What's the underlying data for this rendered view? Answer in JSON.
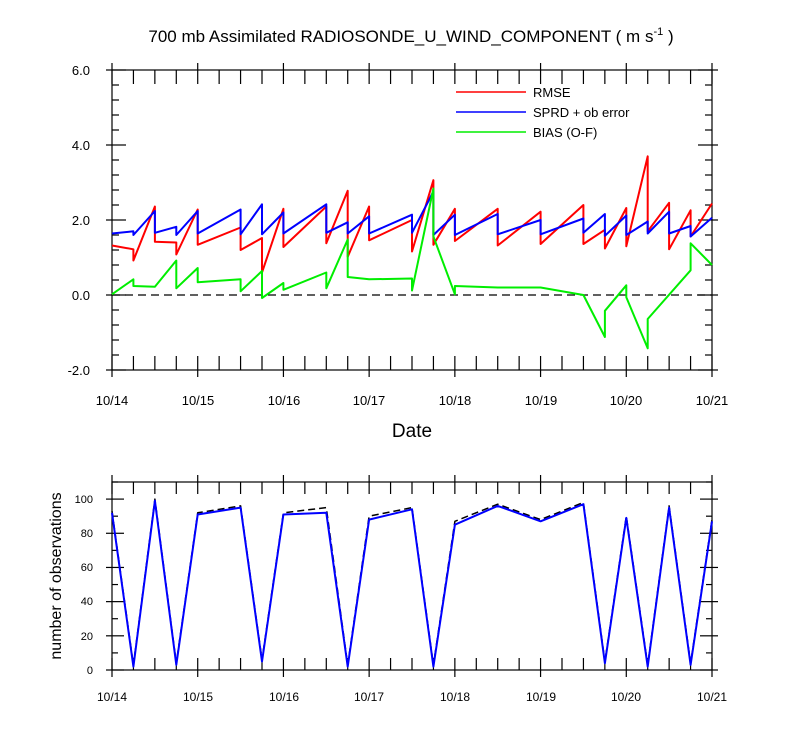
{
  "chart_data": [
    {
      "type": "line",
      "title": "700 mb Assimilated RADIOSONDE_U_WIND_COMPONENT ( m s",
      "title_superscript": "-1",
      "title_suffix": " )",
      "xlabel": "Date",
      "ylabel": "",
      "xlim": [
        0,
        7
      ],
      "ylim": [
        -2.0,
        6.0
      ],
      "x_tick_labels": [
        "10/14",
        "10/15",
        "10/16",
        "10/17",
        "10/18",
        "10/19",
        "10/20",
        "10/21"
      ],
      "y_tick_labels": [
        "6.0",
        "4.0",
        "2.0",
        "0.0",
        "-2.0"
      ],
      "reference_line": 0.0,
      "legend": "top-right",
      "series": [
        {
          "name": "RMSE",
          "color": "#ff0000",
          "x": [
            0,
            0.25,
            0.25,
            0.5,
            0.5,
            0.75,
            0.75,
            1.0,
            1.0,
            1.5,
            1.5,
            1.75,
            1.75,
            2.0,
            2.0,
            2.5,
            2.5,
            2.75,
            2.75,
            3.0,
            3.0,
            3.5,
            3.5,
            3.75,
            3.75,
            4.0,
            4.0,
            4.5,
            4.5,
            5.0,
            5.0,
            5.5,
            5.5,
            5.75,
            5.75,
            6.0,
            6.0,
            6.25,
            6.25,
            6.5,
            6.5,
            6.75,
            6.75,
            7.0
          ],
          "y": [
            1.32,
            1.22,
            0.92,
            2.36,
            1.42,
            1.4,
            1.08,
            2.28,
            1.34,
            1.8,
            1.2,
            1.52,
            0.6,
            2.3,
            1.28,
            2.36,
            1.38,
            2.78,
            1.02,
            2.36,
            1.46,
            2.0,
            1.16,
            3.06,
            1.34,
            2.3,
            1.44,
            2.3,
            1.32,
            2.22,
            1.36,
            2.4,
            1.36,
            1.74,
            1.24,
            2.32,
            1.3,
            3.7,
            1.7,
            2.46,
            1.22,
            2.26,
            1.56,
            2.44
          ]
        },
        {
          "name": "SPRD + ob error",
          "color": "#0000ff",
          "x": [
            0,
            0.25,
            0.25,
            0.5,
            0.5,
            0.75,
            0.75,
            1.0,
            1.0,
            1.5,
            1.5,
            1.75,
            1.75,
            2.0,
            2.0,
            2.5,
            2.5,
            2.75,
            2.75,
            3.0,
            3.0,
            3.5,
            3.5,
            3.75,
            3.75,
            4.0,
            4.0,
            4.5,
            4.5,
            5.0,
            5.0,
            5.5,
            5.5,
            5.75,
            5.75,
            6.0,
            6.0,
            6.25,
            6.25,
            6.5,
            6.5,
            6.75,
            6.75,
            7.0
          ],
          "y": [
            1.64,
            1.7,
            1.6,
            2.24,
            1.66,
            1.82,
            1.6,
            2.24,
            1.64,
            2.28,
            1.62,
            2.42,
            1.62,
            2.2,
            1.64,
            2.42,
            1.66,
            1.94,
            1.64,
            2.1,
            1.64,
            2.14,
            1.66,
            2.76,
            1.6,
            2.14,
            1.6,
            2.16,
            1.62,
            2.0,
            1.62,
            2.04,
            1.66,
            2.16,
            1.58,
            2.12,
            1.6,
            1.96,
            1.64,
            2.22,
            1.64,
            1.84,
            1.56,
            2.06
          ]
        },
        {
          "name": "BIAS (O-F)",
          "color": "#00ee00",
          "x": [
            0,
            0.25,
            0.25,
            0.5,
            0.75,
            0.75,
            1.0,
            1.0,
            1.5,
            1.5,
            1.75,
            1.75,
            2.0,
            2.0,
            2.5,
            2.5,
            2.75,
            2.75,
            3.0,
            3.5,
            3.5,
            3.75,
            3.75,
            4.0,
            4.0,
            4.5,
            5.0,
            5.5,
            5.75,
            5.75,
            6.0,
            6.0,
            6.25,
            6.25,
            6.75,
            6.75,
            7.0
          ],
          "y": [
            0.02,
            0.42,
            0.24,
            0.22,
            0.92,
            0.18,
            0.72,
            0.34,
            0.42,
            0.1,
            0.64,
            -0.08,
            0.32,
            0.14,
            0.6,
            0.18,
            1.48,
            0.48,
            0.42,
            0.44,
            0.12,
            2.84,
            1.56,
            0.02,
            0.24,
            0.2,
            0.2,
            0.0,
            -1.12,
            -0.42,
            0.26,
            -0.06,
            -1.42,
            -0.64,
            0.66,
            1.38,
            0.8
          ]
        }
      ]
    },
    {
      "type": "line",
      "title": "",
      "xlabel": "",
      "ylabel": "number of observations",
      "xlim": [
        0,
        7
      ],
      "ylim": [
        0,
        110
      ],
      "x_tick_labels": [
        "10/14",
        "10/15",
        "10/16",
        "10/17",
        "10/18",
        "10/19",
        "10/20",
        "10/21"
      ],
      "y_tick_labels": [
        "100",
        "80",
        "60",
        "40",
        "20",
        "0"
      ],
      "series": [
        {
          "name": "observations (dashed)",
          "color": "#000000",
          "x": [
            0,
            0.25,
            0.5,
            0.75,
            1.0,
            1.5,
            1.75,
            2.0,
            2.5,
            2.75,
            3.0,
            3.5,
            3.75,
            4.0,
            4.5,
            5.0,
            5.5,
            5.75,
            6.0,
            6.25,
            6.5,
            6.75,
            7.0
          ],
          "y": [
            93,
            3,
            100,
            4,
            92,
            96,
            6,
            92,
            95,
            3,
            90,
            95,
            3,
            87,
            97,
            88,
            98,
            5,
            90,
            3,
            96,
            4,
            88
          ]
        },
        {
          "name": "observations (solid)",
          "color": "#0000ff",
          "x": [
            0,
            0.25,
            0.5,
            0.75,
            1.0,
            1.5,
            1.75,
            2.0,
            2.5,
            2.75,
            3.0,
            3.5,
            3.75,
            4.0,
            4.5,
            5.0,
            5.5,
            5.75,
            6.0,
            6.25,
            6.5,
            6.75,
            7.0
          ],
          "y": [
            92,
            2,
            99,
            3,
            91,
            95,
            5,
            91,
            92,
            2,
            88,
            94,
            2,
            85,
            96,
            87,
            97,
            4,
            89,
            2,
            95,
            3,
            87
          ]
        }
      ]
    }
  ]
}
